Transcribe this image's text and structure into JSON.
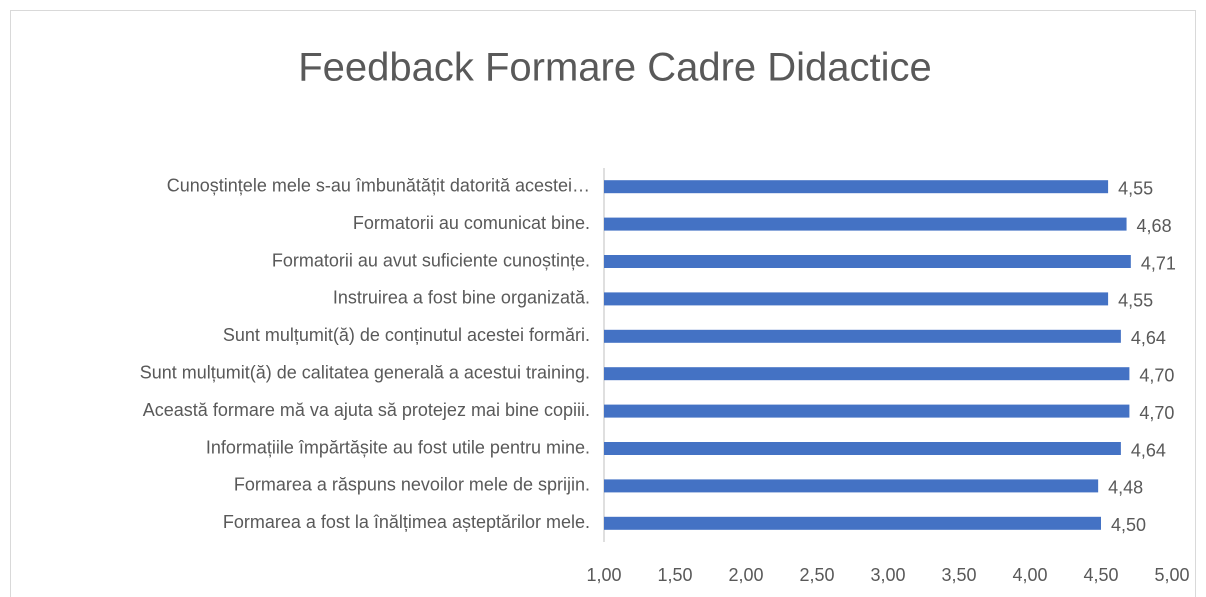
{
  "chart_data": {
    "type": "bar",
    "orientation": "horizontal",
    "title": "Feedback Formare Cadre Didactice",
    "categories": [
      "Cunoștințele mele s-au îmbunătățit datorită acestei…",
      "Formatorii au comunicat bine.",
      "Formatorii au avut suficiente cunoștințe.",
      "Instruirea a fost bine organizată.",
      "Sunt mulțumit(ă) de conținutul acestei formări.",
      "Sunt mulțumit(ă) de calitatea generală a acestui training.",
      "Această formare mă va ajuta să protejez mai bine copiii.",
      "Informațiile împărtășite au fost utile pentru mine.",
      "Formarea a răspuns nevoilor mele de sprijin.",
      "Formarea a fost la înălțimea așteptărilor mele."
    ],
    "values": [
      4.55,
      4.68,
      4.71,
      4.55,
      4.64,
      4.7,
      4.7,
      4.64,
      4.48,
      4.5
    ],
    "value_labels": [
      "4,55",
      "4,68",
      "4,71",
      "4,55",
      "4,64",
      "4,70",
      "4,70",
      "4,64",
      "4,48",
      "4,50"
    ],
    "color": "#4472c4",
    "xlim": [
      1,
      5
    ],
    "xticks": [
      {
        "value": 1,
        "label": "1,00"
      },
      {
        "value": 1.5,
        "label": "1,50"
      },
      {
        "value": 2,
        "label": "2,00"
      },
      {
        "value": 2.5,
        "label": "2,50"
      },
      {
        "value": 3,
        "label": "3,00"
      },
      {
        "value": 3.5,
        "label": "3,50"
      },
      {
        "value": 4,
        "label": "4,00"
      },
      {
        "value": 4.5,
        "label": "4,50"
      },
      {
        "value": 5,
        "label": "5,00"
      }
    ],
    "grid": false
  }
}
